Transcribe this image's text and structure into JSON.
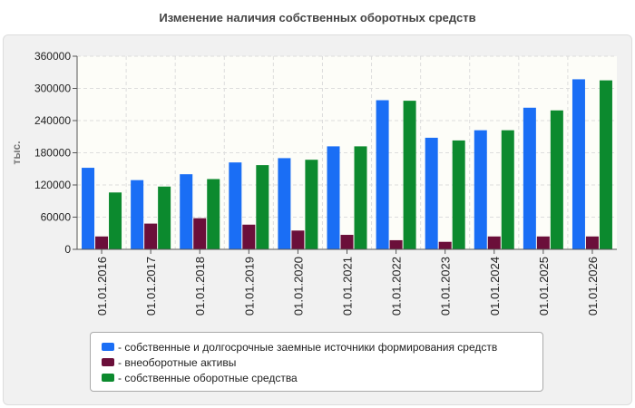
{
  "chart_data": {
    "type": "bar",
    "title": "Изменение наличия собственных оборотных средств",
    "xlabel": "",
    "ylabel": "тыс.",
    "categories": [
      "01.01.2016",
      "01.01.2017",
      "01.01.2018",
      "01.01.2019",
      "01.01.2020",
      "01.01.2021",
      "01.01.2022",
      "01.01.2023",
      "01.01.2024",
      "01.01.2025",
      "01.01.2026"
    ],
    "yticks": [
      "0",
      "60000",
      "120000",
      "180000",
      "240000",
      "300000",
      "360000"
    ],
    "ylim": [
      0,
      360000
    ],
    "grid": true,
    "legend_position": "bottom",
    "series": [
      {
        "name": "- собственные и долгосрочные заемные источники формирования средств",
        "color": "#1a6ef5",
        "values": [
          152000,
          129000,
          140000,
          162000,
          170000,
          192000,
          278000,
          208000,
          222000,
          264000,
          317000
        ]
      },
      {
        "name": "- внеоборотные активы",
        "color": "#6b0f3a",
        "values": [
          24000,
          48000,
          58000,
          46000,
          35000,
          27000,
          17000,
          14000,
          24000,
          24000,
          24000
        ]
      },
      {
        "name": "- собственные оборотные средства",
        "color": "#0c8a2e",
        "values": [
          106000,
          117000,
          131000,
          157000,
          167000,
          192000,
          277000,
          203000,
          222000,
          259000,
          315000
        ]
      }
    ]
  }
}
